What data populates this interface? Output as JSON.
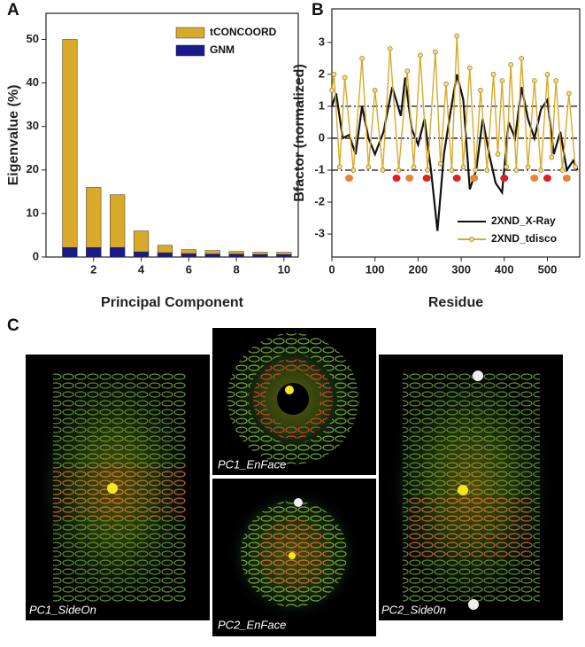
{
  "panel_labels": [
    "A",
    "B",
    "C"
  ],
  "images": [
    {
      "label": "PC1_SideOn"
    },
    {
      "label": "PC1_EnFace"
    },
    {
      "label": "PC2_EnFace"
    },
    {
      "label": "PC2_Side0n"
    }
  ],
  "chart_data": [
    {
      "type": "bar",
      "xlabel": "Principal Component",
      "ylabel": "Eigenvalue (%)",
      "x": [
        1,
        2,
        3,
        4,
        5,
        6,
        7,
        8,
        9,
        10
      ],
      "series": [
        {
          "name": "tCONCOORD",
          "color": "#d9a92a",
          "values": [
            50,
            16,
            14.3,
            6,
            2.7,
            1.7,
            1.5,
            1.3,
            1.1,
            1.1
          ]
        },
        {
          "name": "GNM",
          "color": "#1a1a8a",
          "values": [
            2.2,
            2.2,
            2.2,
            1.2,
            1.0,
            0.8,
            0.7,
            0.7,
            0.6,
            0.6
          ]
        }
      ],
      "xlim": [
        0,
        10.6
      ],
      "xticks": [
        2,
        4,
        6,
        8,
        10
      ],
      "ylim": [
        0,
        56
      ],
      "yticks": [
        0,
        10,
        20,
        30,
        40,
        50
      ],
      "legend": "upper right"
    },
    {
      "type": "line",
      "xlabel": "Residue",
      "ylabel": "Bfactor (normalized)",
      "series": [
        {
          "name": "2XND_X-Ray",
          "color": "#111111",
          "markers": false,
          "x": [
            0,
            10,
            25,
            40,
            55,
            70,
            85,
            100,
            120,
            140,
            160,
            170,
            185,
            200,
            215,
            230,
            245,
            260,
            275,
            290,
            305,
            320,
            335,
            350,
            365,
            380,
            395,
            410,
            425,
            440,
            455,
            470,
            485,
            500,
            515,
            530,
            545,
            560,
            570
          ],
          "values": [
            1.0,
            1.4,
            0.0,
            0.1,
            -0.5,
            1.0,
            0.0,
            -0.5,
            0.2,
            1.6,
            0.7,
            1.9,
            0.3,
            -0.2,
            0.6,
            -1.0,
            -2.9,
            -0.5,
            0.8,
            2.0,
            1.2,
            -1.6,
            -1.0,
            0.6,
            -0.5,
            -1.4,
            -1.7,
            0.5,
            0.0,
            1.6,
            0.6,
            0.0,
            0.9,
            1.2,
            -0.5,
            0.2,
            -1.0,
            -0.7,
            -1.0
          ]
        },
        {
          "name": "2XND_tdisco",
          "color": "#d9a92a",
          "markers": true,
          "x": [
            0,
            5,
            18,
            30,
            50,
            70,
            85,
            100,
            118,
            135,
            155,
            175,
            190,
            205,
            222,
            240,
            252,
            265,
            278,
            290,
            305,
            320,
            333,
            345,
            360,
            375,
            385,
            395,
            405,
            415,
            428,
            440,
            455,
            470,
            485,
            500,
            510,
            520,
            535,
            550,
            565
          ],
          "values": [
            1.5,
            2.0,
            -0.9,
            1.9,
            -1.0,
            2.5,
            -0.9,
            1.5,
            -1.0,
            2.8,
            -1.0,
            2.1,
            -0.9,
            2.6,
            -1.0,
            2.7,
            -0.8,
            1.7,
            -1.0,
            3.2,
            -0.9,
            2.2,
            -1.0,
            1.5,
            -1.0,
            2.0,
            -0.5,
            1.8,
            -0.9,
            2.3,
            -1.0,
            2.5,
            -0.9,
            1.8,
            -1.0,
            2.0,
            -0.6,
            1.8,
            -1.0,
            1.4,
            -0.9
          ]
        },
        {
          "type": "scatter",
          "color": "#e02020",
          "x": [
            150,
            220,
            290,
            400,
            500
          ],
          "values": [
            -1.25,
            -1.25,
            -1.25,
            -1.25,
            -1.25
          ]
        },
        {
          "type": "scatter",
          "color": "#e8843a",
          "x": [
            40,
            180,
            330,
            470,
            545
          ],
          "values": [
            -1.25,
            -1.25,
            -1.25,
            -1.25,
            -1.25
          ]
        }
      ],
      "hlines": [
        1,
        0,
        -1
      ],
      "xlim": [
        0,
        575
      ],
      "xticks": [
        0,
        100,
        200,
        300,
        400,
        500
      ],
      "ylim": [
        -3.72,
        4.05
      ],
      "yticks": [
        -3,
        -2,
        -1,
        0,
        1,
        2,
        3
      ],
      "legend": "lower right"
    }
  ]
}
